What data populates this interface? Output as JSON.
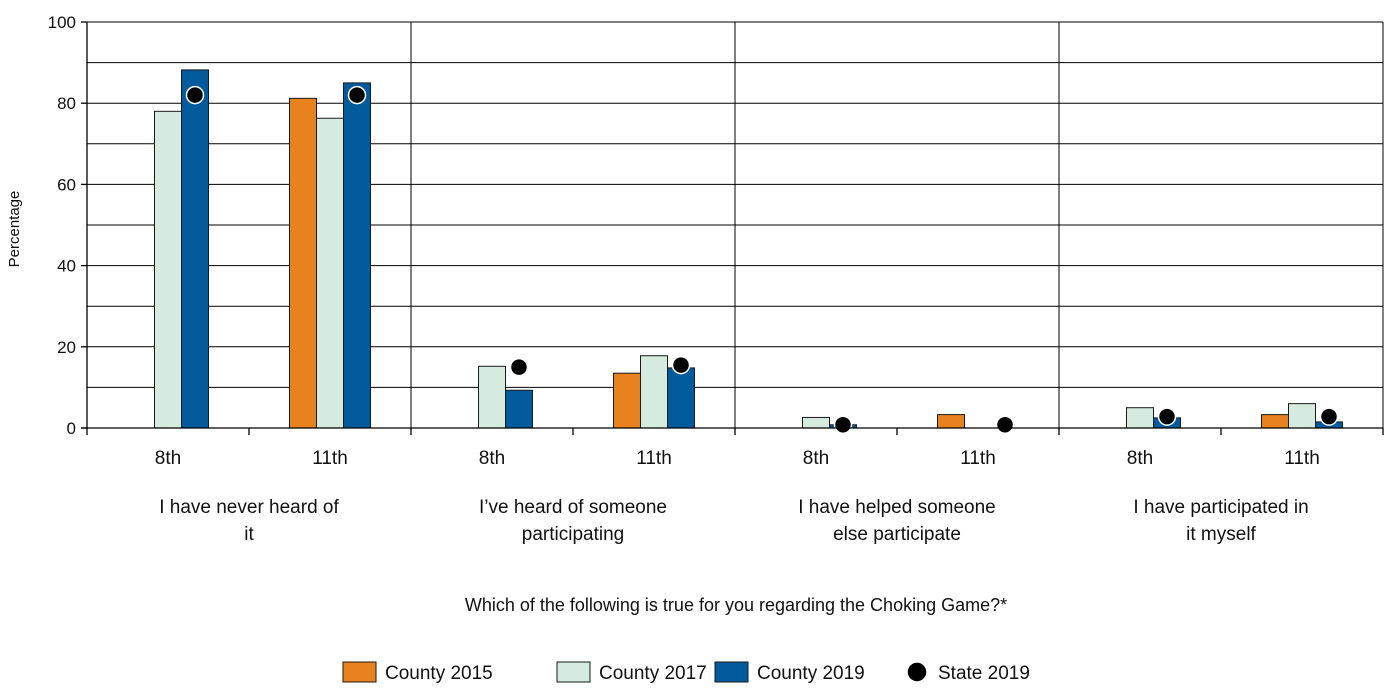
{
  "colors": {
    "county_2015": "#E8821E",
    "county_2017": "#D6EBE0",
    "county_2019": "#005A9C",
    "state_2019": "#000000",
    "bar_outline": "#1a1a1a",
    "grid": "#000000"
  },
  "chart_data": {
    "type": "bar",
    "ylabel": "Percentage",
    "xlabel": "Which of the following is true for you regarding the Choking Game?*",
    "ylim": [
      0,
      100
    ],
    "yticks": [
      0,
      20,
      40,
      60,
      80,
      100
    ],
    "grid": true,
    "legend_position": "bottom",
    "groups": [
      {
        "label_lines": [
          "I have never heard of",
          "it"
        ]
      },
      {
        "label_lines": [
          "I’ve heard of someone",
          "participating"
        ]
      },
      {
        "label_lines": [
          "I have helped someone",
          "else participate"
        ]
      },
      {
        "label_lines": [
          "I have participated in",
          "it myself"
        ]
      }
    ],
    "categories": [
      "8th",
      "11th",
      "8th",
      "11th",
      "8th",
      "11th",
      "8th",
      "11th"
    ],
    "series": [
      {
        "name": "County 2015",
        "kind": "bar",
        "values": [
          null,
          81.2,
          null,
          13.5,
          null,
          3.3,
          null,
          3.3
        ]
      },
      {
        "name": "County 2017",
        "kind": "bar",
        "values": [
          78.0,
          76.3,
          15.2,
          17.8,
          2.6,
          null,
          5.0,
          6.0
        ]
      },
      {
        "name": "County 2019",
        "kind": "bar",
        "values": [
          88.2,
          85.0,
          9.3,
          14.8,
          0.8,
          null,
          2.5,
          1.5
        ]
      },
      {
        "name": "State 2019",
        "kind": "point",
        "values": [
          82.0,
          82.0,
          15.0,
          15.5,
          0.8,
          0.8,
          2.8,
          2.8
        ]
      }
    ]
  },
  "legend": {
    "items": [
      "County 2015",
      "County 2017",
      "County 2019",
      "State 2019"
    ]
  }
}
